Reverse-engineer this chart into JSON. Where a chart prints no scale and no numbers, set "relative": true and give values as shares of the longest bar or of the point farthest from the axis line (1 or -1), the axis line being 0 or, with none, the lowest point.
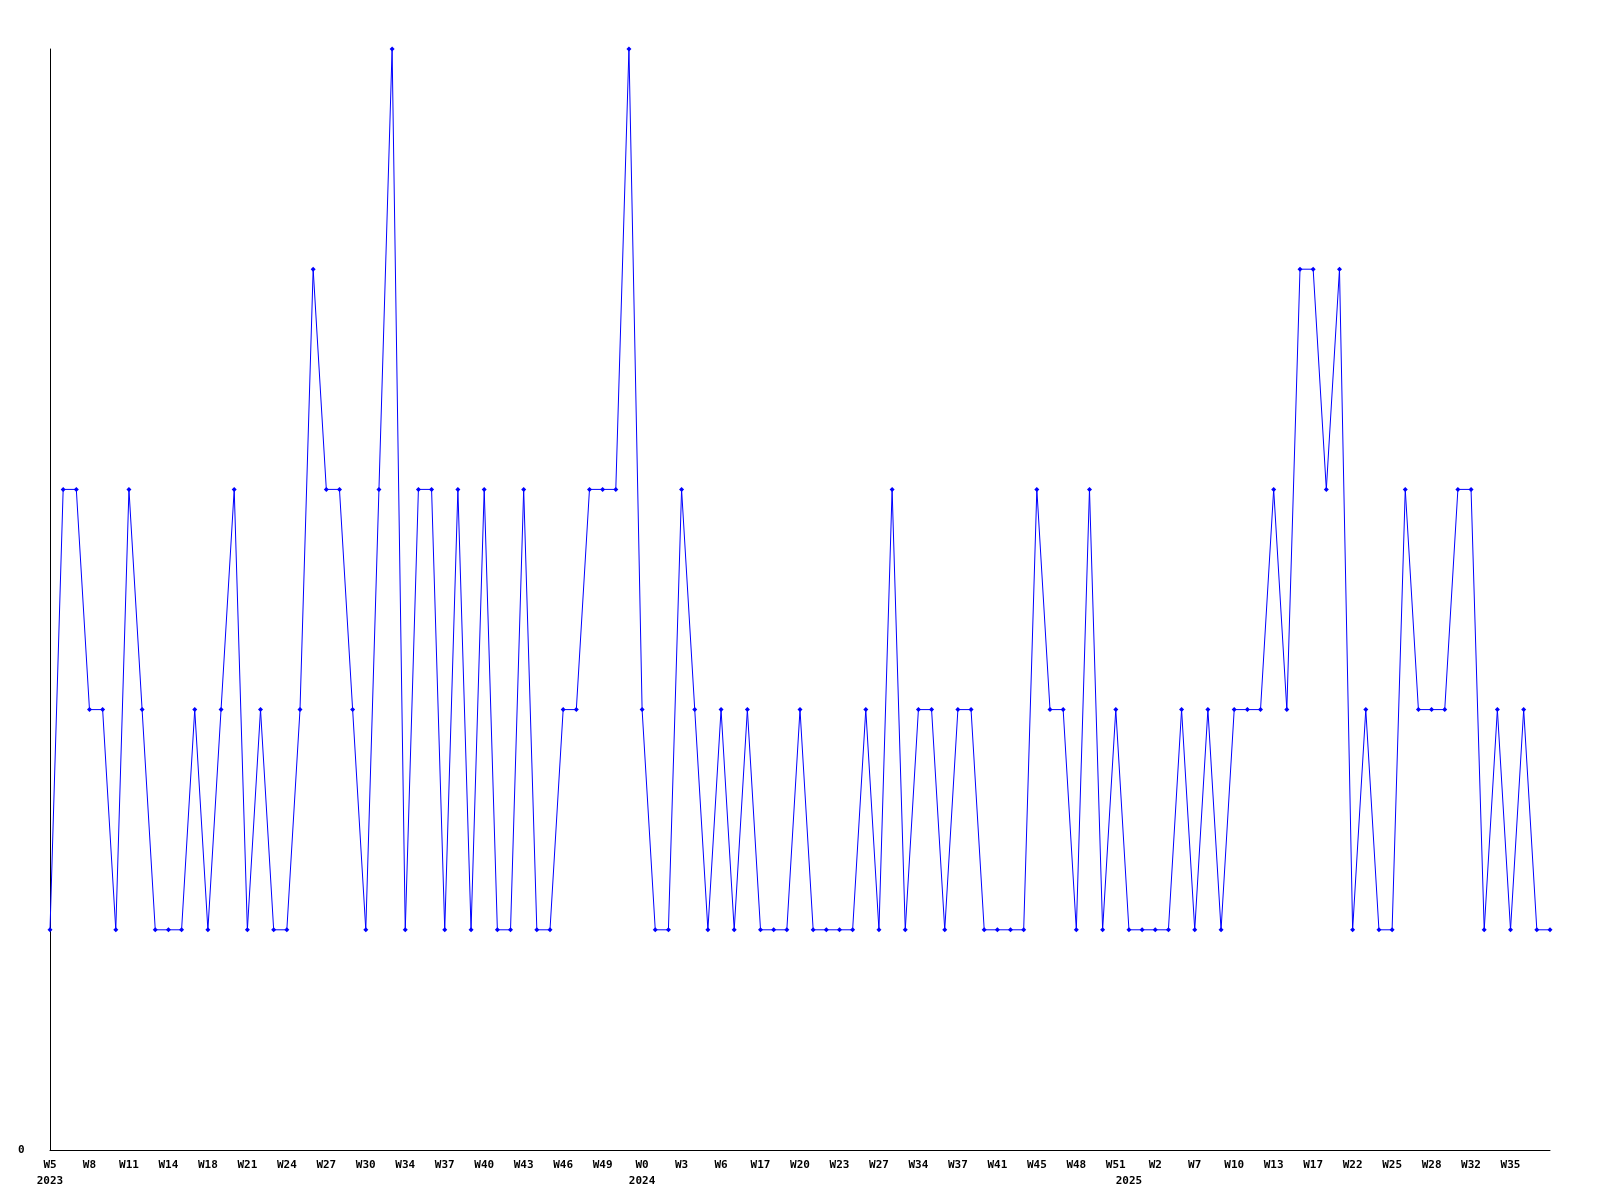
{
  "chart_data": {
    "type": "line",
    "relative": true,
    "marker": "diamond",
    "line_style": "solid",
    "categories": [
      "W5\n2023",
      null,
      null,
      "W8",
      null,
      null,
      "W11",
      null,
      null,
      "W14",
      null,
      null,
      "W18",
      null,
      null,
      "W21",
      null,
      null,
      "W24",
      null,
      null,
      "W27",
      null,
      null,
      "W30",
      null,
      null,
      "W34",
      null,
      null,
      "W37",
      null,
      null,
      "W40",
      null,
      null,
      "W43",
      null,
      null,
      "W46",
      null,
      null,
      "W49",
      null,
      null,
      "W0\n2024",
      null,
      null,
      "W3",
      null,
      null,
      "W6",
      null,
      null,
      "W17",
      null,
      null,
      "W20",
      null,
      null,
      "W23",
      null,
      null,
      "W27",
      null,
      null,
      "W34",
      null,
      null,
      "W37",
      null,
      null,
      "W41",
      null,
      null,
      "W45",
      null,
      null,
      "W48",
      null,
      null,
      "W51",
      "\n2025",
      null,
      "W2",
      null,
      null,
      "W7",
      null,
      null,
      "W10",
      null,
      null,
      "W13",
      null,
      null,
      "W17",
      null,
      null,
      "W22",
      null,
      null,
      "W25",
      null,
      null,
      "W28",
      null,
      null,
      "W32",
      null,
      null,
      "W35",
      null,
      null,
      null
    ],
    "series": [
      {
        "color": "#0000ff",
        "values": [
          0.2,
          0.6,
          0.6,
          0.4,
          0.4,
          0.2,
          0.6,
          0.4,
          0.2,
          0.2,
          0.2,
          0.4,
          0.2,
          0.4,
          0.6,
          0.2,
          0.4,
          0.2,
          0.2,
          0.4,
          0.8,
          0.6,
          0.6,
          0.4,
          0.2,
          0.6,
          1,
          0.2,
          0.6,
          0.6,
          0.2,
          0.6,
          0.2,
          0.6,
          0.2,
          0.2,
          0.6,
          0.2,
          0.2,
          0.4,
          0.4,
          0.6,
          0.6,
          0.6,
          1,
          0.4,
          0.2,
          0.2,
          0.6,
          0.4,
          0.2,
          0.4,
          0.2,
          0.4,
          0.2,
          0.2,
          0.2,
          0.4,
          0.2,
          0.2,
          0.2,
          0.2,
          0.4,
          0.2,
          0.6,
          0.2,
          0.4,
          0.4,
          0.2,
          0.4,
          0.4,
          0.2,
          0.2,
          0.2,
          0.2,
          0.6,
          0.4,
          0.4,
          0.2,
          0.6,
          0.2,
          0.4,
          0.2,
          0.2,
          0.2,
          0.2,
          0.4,
          0.2,
          0.4,
          0.2,
          0.4,
          0.4,
          0.4,
          0.6,
          0.4,
          0.8,
          0.8,
          0.6,
          0.8,
          0.2,
          0.4,
          0.2,
          0.2,
          0.6,
          0.4,
          0.4,
          0.4,
          0.6,
          0.6,
          0.2,
          0.4,
          0.2,
          0.4,
          0.2,
          0.2
        ]
      }
    ],
    "annotations": [
      "0"
    ]
  }
}
